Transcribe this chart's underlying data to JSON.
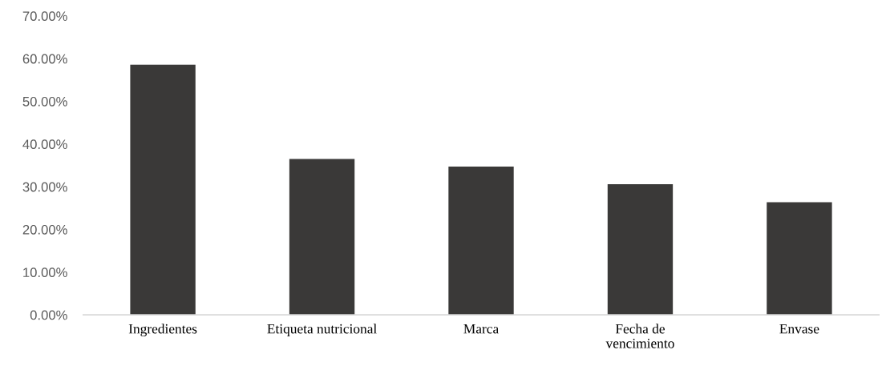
{
  "chart_data": {
    "type": "bar",
    "categories": [
      "Ingredientes",
      "Etiqueta nutricional",
      "Marca",
      "Fecha de\nvencimiento",
      "Envase"
    ],
    "values": [
      58.6,
      36.5,
      34.7,
      30.6,
      26.4
    ],
    "color": "#3a3938",
    "ylim": [
      0,
      70
    ],
    "yticks": [
      {
        "value": 0,
        "label": "0.00%"
      },
      {
        "value": 10,
        "label": "10.00%"
      },
      {
        "value": 20,
        "label": "20.00%"
      },
      {
        "value": 30,
        "label": "30.00%"
      },
      {
        "value": 40,
        "label": "40.00%"
      },
      {
        "value": 50,
        "label": "50.00%"
      },
      {
        "value": 60,
        "label": "60.00%"
      },
      {
        "value": 70,
        "label": "70.00%"
      }
    ],
    "grid": false,
    "legend": false
  }
}
